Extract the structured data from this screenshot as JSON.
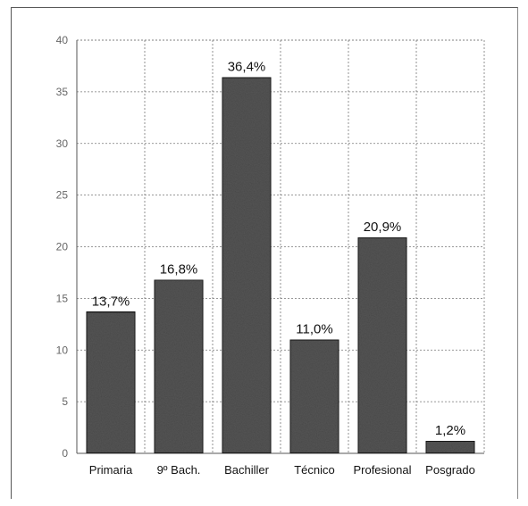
{
  "chart_data": {
    "type": "bar",
    "categories": [
      "Primaria",
      "9º Bach.",
      "Bachiller",
      "Técnico",
      "Profesional",
      "Posgrado"
    ],
    "values": [
      13.7,
      16.8,
      36.4,
      11.0,
      20.9,
      1.2
    ],
    "data_labels": [
      "13,7%",
      "16,8%",
      "36,4%",
      "11,0%",
      "20,9%",
      "1,2%"
    ],
    "yticks": [
      "0",
      "5",
      "10",
      "15",
      "20",
      "25",
      "30",
      "35",
      "40"
    ],
    "ylim": [
      0,
      40
    ],
    "grid": true,
    "bar_color": "#555555"
  }
}
